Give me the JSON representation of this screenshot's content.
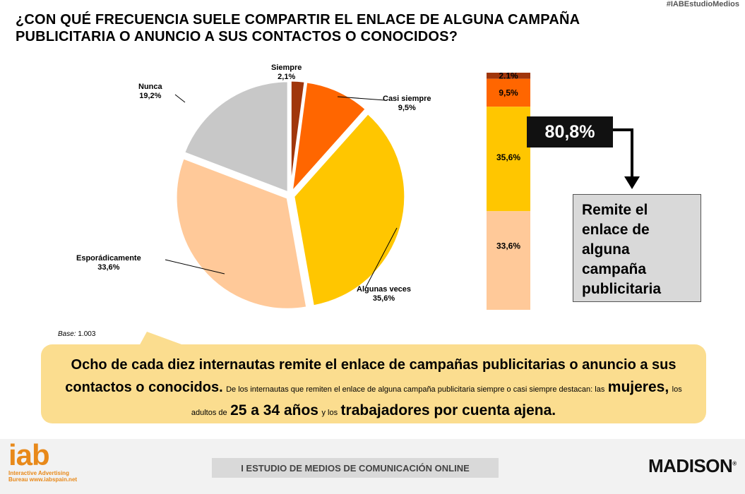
{
  "header": {
    "hashtag": "#IABEstudioMedios",
    "title_line1": "¿CON QUÉ FRECUENCIA SUELE COMPARTIR EL ENLACE DE ALGUNA CAMPAÑA",
    "title_line2": "PUBLICITARIA O ANUNCIO A SUS CONTACTOS O CONOCIDOS?"
  },
  "chart_data": [
    {
      "type": "pie",
      "slices": [
        {
          "label": "Siempre",
          "value": 2.1,
          "display": "2,1%",
          "color": "#a0360c"
        },
        {
          "label": "Casi siempre",
          "value": 9.5,
          "display": "9,5%",
          "color": "#ff6600"
        },
        {
          "label": "Algunas veces",
          "value": 35.6,
          "display": "35,6%",
          "color": "#ffc600"
        },
        {
          "label": "Esporádicamente",
          "value": 33.6,
          "display": "33,6%",
          "color": "#ffc999"
        },
        {
          "label": "Nunca",
          "value": 19.2,
          "display": "19,2%",
          "color": "#c8c8c8"
        }
      ]
    },
    {
      "type": "bar",
      "stacked": true,
      "segments": [
        {
          "value": 2.1,
          "display": "2,1%",
          "color": "#a0360c"
        },
        {
          "value": 9.5,
          "display": "9,5%",
          "color": "#ff6600"
        },
        {
          "value": 35.6,
          "display": "35,6%",
          "color": "#ffc600"
        },
        {
          "value": 33.6,
          "display": "33,6%",
          "color": "#ffc999"
        }
      ]
    }
  ],
  "summary": {
    "total": "80,8%",
    "remite_text": "Remite el enlace de alguna campaña publicitaria"
  },
  "base": {
    "label": "Base:",
    "value": "1.003"
  },
  "callout": {
    "headline": "Ocho de cada diez internautas remite el enlace de campañas publicitarias o anuncio a sus contactos o conocidos.",
    "detail_1": "De los internautas que remiten el enlace de alguna campaña publicitaria siempre o casi siempre destacan: las",
    "em_1": "mujeres,",
    "detail_2": "los adultos de",
    "em_2": "25 a 34 años",
    "detail_3": "y los",
    "em_3": "trabajadores por cuenta ajena."
  },
  "footer": {
    "iab_logo": "iab",
    "iab_line1": "Interactive Advertising",
    "iab_line2": "Bureau www.iabspain.net",
    "study": "I ESTUDIO DE MEDIOS DE COMUNICACIÓN ONLINE",
    "madison": "MADISON",
    "madison_mark": "®"
  }
}
